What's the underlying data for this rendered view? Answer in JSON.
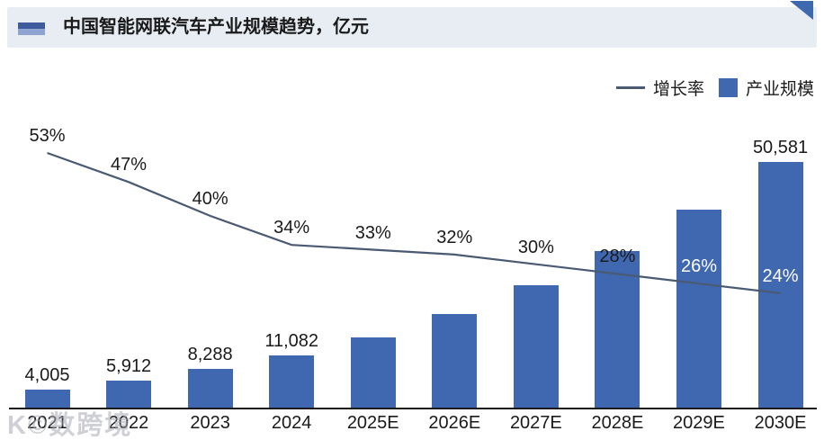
{
  "header": {
    "title": "中国智能网联汽车产业规模趋势，亿元"
  },
  "legend": {
    "growth_label": "增长率",
    "scale_label": "产业规模"
  },
  "watermark": "K©数跨境",
  "colors": {
    "bar": "#3F68B1",
    "line": "#4A5A72",
    "header_bg": "#E8EDF4",
    "header_icon_dark": "#3E5C9D",
    "header_icon_light": "#8DA5D0",
    "corner_triangle": "#3E69AE",
    "pct_label_on_bar": "#FFFFFF"
  },
  "chart_data": {
    "type": "combo",
    "categories": [
      "2021",
      "2022",
      "2023",
      "2024",
      "2025E",
      "2026E",
      "2027E",
      "2028E",
      "2029E",
      "2030E"
    ],
    "series": [
      {
        "name": "产业规模",
        "type": "bar",
        "unit": "亿元",
        "values": [
          4005,
          5912,
          8288,
          11082,
          14739,
          19456,
          25293,
          32375,
          40793,
          50581
        ],
        "value_labels": [
          "4,005",
          "5,912",
          "8,288",
          "11,082",
          null,
          null,
          null,
          null,
          null,
          "50,581"
        ]
      },
      {
        "name": "增长率",
        "type": "line",
        "unit": "%",
        "values": [
          53,
          47,
          40,
          34,
          33,
          32,
          30,
          28,
          26,
          24
        ],
        "value_labels": [
          "53%",
          "47%",
          "40%",
          "34%",
          "33%",
          "32%",
          "30%",
          "28%",
          "26%",
          "24%"
        ]
      }
    ],
    "bar_axis_range": [
      0,
      50581
    ],
    "line_axis_range_pct": [
      0,
      53
    ],
    "layout_hints": {
      "gridlines": false,
      "value_axes_hidden": true,
      "legend_position": "top-right",
      "pct_labels_white_on_bar": [
        "2029E",
        "2030E"
      ]
    }
  }
}
